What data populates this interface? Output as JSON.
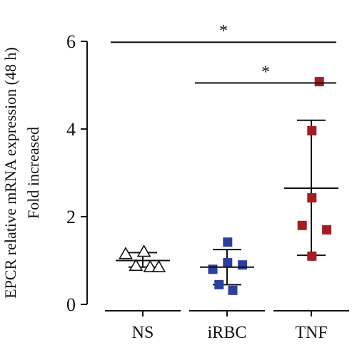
{
  "chart_data": {
    "type": "scatter",
    "ylabel_lines": [
      "EPCR relative mRNA expression (48 h)",
      "Fold increased"
    ],
    "categories": [
      "NS",
      "iRBC",
      "TNF"
    ],
    "ylim": [
      0,
      6
    ],
    "yticks": [
      "0",
      "2",
      "4",
      "6"
    ],
    "groups": [
      {
        "category": "NS",
        "marker": "triangle-open",
        "color": "#111111",
        "points": [
          {
            "jitter": -0.3,
            "y": 1.15
          },
          {
            "jitter": -0.12,
            "y": 0.88
          },
          {
            "jitter": 0.02,
            "y": 1.2
          },
          {
            "jitter": 0.13,
            "y": 0.85
          },
          {
            "jitter": 0.28,
            "y": 0.85
          }
        ],
        "mean": 1.0,
        "sd_upper": 1.18,
        "sd_lower": 0.85
      },
      {
        "category": "iRBC",
        "marker": "square",
        "color": "#2c3e9e",
        "points": [
          {
            "jitter": -0.25,
            "y": 0.8
          },
          {
            "jitter": -0.14,
            "y": 0.45
          },
          {
            "jitter": 0.01,
            "y": 1.42
          },
          {
            "jitter": 0.01,
            "y": 0.95
          },
          {
            "jitter": 0.1,
            "y": 0.32
          },
          {
            "jitter": 0.27,
            "y": 0.9
          }
        ],
        "mean": 0.85,
        "sd_upper": 1.25,
        "sd_lower": 0.45
      },
      {
        "category": "TNF",
        "marker": "square",
        "color": "#a51c24",
        "points": [
          {
            "jitter": -0.16,
            "y": 1.8
          },
          {
            "jitter": 0.01,
            "y": 3.96
          },
          {
            "jitter": 0.01,
            "y": 2.43
          },
          {
            "jitter": 0.01,
            "y": 1.1
          },
          {
            "jitter": 0.14,
            "y": 5.08
          },
          {
            "jitter": 0.27,
            "y": 1.7
          }
        ],
        "mean": 2.65,
        "sd_upper": 4.2,
        "sd_lower": 1.12
      }
    ],
    "significance": [
      {
        "from": "NS",
        "to": "TNF",
        "y": 5.98,
        "label": "*"
      },
      {
        "from": "iRBC",
        "to": "TNF",
        "y": 5.05,
        "label": "*"
      }
    ],
    "grid": false,
    "legend": "none"
  }
}
